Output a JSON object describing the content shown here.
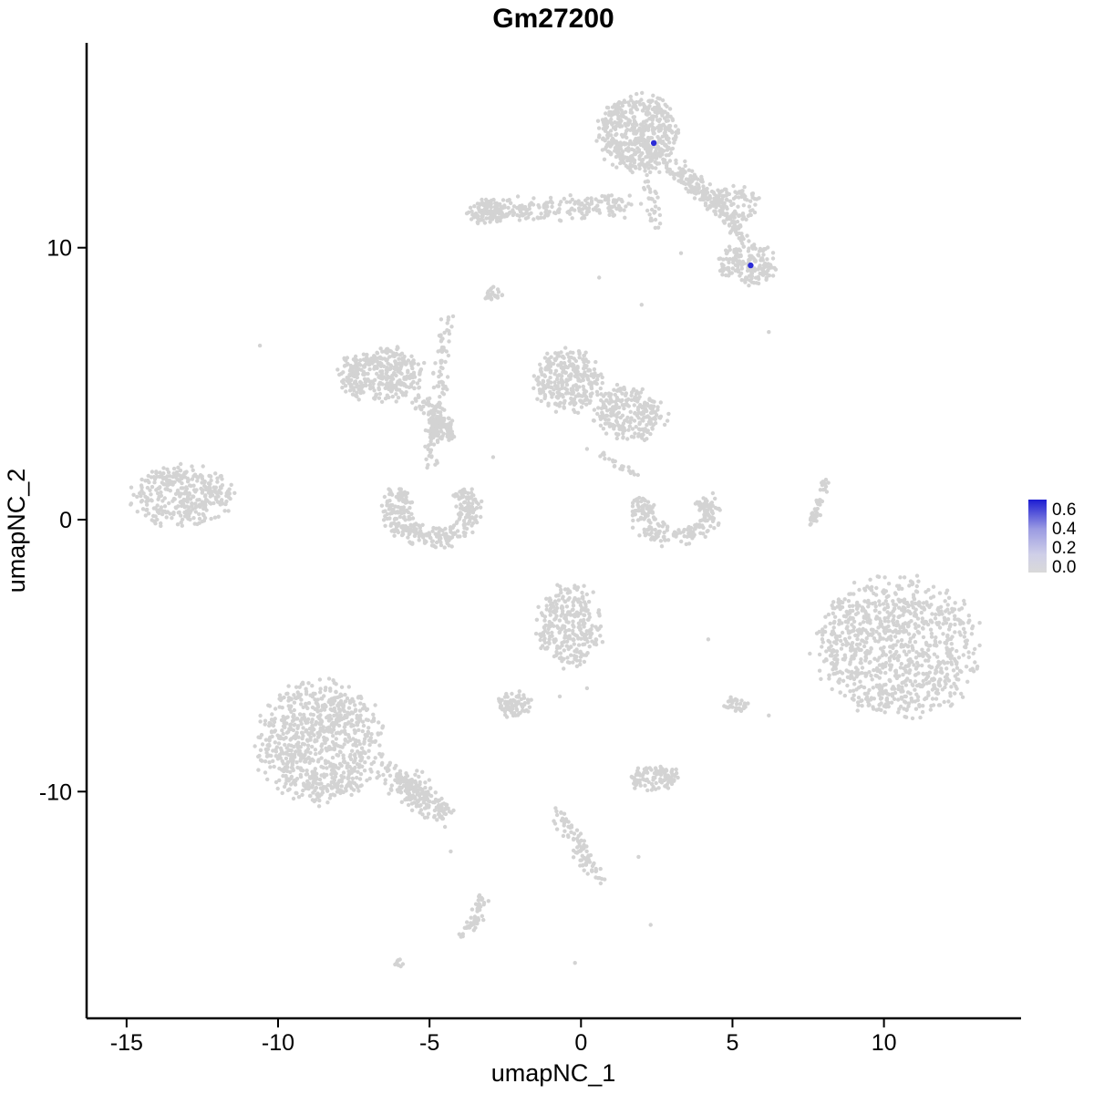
{
  "chart_data": {
    "type": "scatter",
    "title": "Gm27200",
    "xlabel": "umapNC_1",
    "ylabel": "umapNC_2",
    "x_ticks": [
      -15,
      -10,
      -5,
      0,
      5,
      10
    ],
    "y_ticks": [
      -10,
      0,
      10
    ],
    "xlim": [
      -16.3,
      14.6
    ],
    "ylim": [
      -18.4,
      17.6
    ],
    "grid": false,
    "background": "#ffffff",
    "point_color": "#d3d3d3",
    "highlight_color": "#2b2bd6",
    "legend": {
      "position": "right",
      "labels": [
        "0.6",
        "0.4",
        "0.2",
        "0.0"
      ],
      "gradient": [
        "#1c1cd2",
        "#9a9ae2",
        "#cfcfe8",
        "#d9d9d9"
      ]
    },
    "highlight_points": [
      {
        "x": 2.4,
        "y": 13.85,
        "value": 0.6
      },
      {
        "x": 5.6,
        "y": 9.35,
        "value": 0.6
      }
    ],
    "clusters": [
      {
        "type": "blob",
        "cx": 1.9,
        "cy": 14.2,
        "rx": 1.25,
        "ry": 1.4,
        "n": 520
      },
      {
        "type": "line",
        "x1": 2.9,
        "y1": 13.0,
        "x2": 4.4,
        "y2": 11.7,
        "w": 0.45,
        "n": 130
      },
      {
        "type": "line",
        "x1": 2.2,
        "y1": 12.6,
        "x2": 2.5,
        "y2": 10.8,
        "w": 0.25,
        "n": 30
      },
      {
        "type": "blob",
        "cx": 5.0,
        "cy": 11.6,
        "rx": 0.85,
        "ry": 0.65,
        "n": 120
      },
      {
        "type": "line",
        "x1": 4.8,
        "y1": 11.2,
        "x2": 5.4,
        "y2": 10.2,
        "w": 0.3,
        "n": 40
      },
      {
        "type": "blob",
        "cx": 5.5,
        "cy": 9.4,
        "rx": 0.95,
        "ry": 0.75,
        "n": 170
      },
      {
        "type": "line",
        "x1": -3.4,
        "y1": 11.35,
        "x2": 1.6,
        "y2": 11.5,
        "w": 0.5,
        "n": 240
      },
      {
        "type": "blob",
        "cx": -3.1,
        "cy": 11.3,
        "rx": 0.6,
        "ry": 0.45,
        "n": 70
      },
      {
        "type": "blob",
        "cx": -2.9,
        "cy": 8.3,
        "rx": 0.3,
        "ry": 0.25,
        "n": 25
      },
      {
        "type": "line",
        "x1": -4.4,
        "y1": 7.5,
        "x2": -5.0,
        "y2": 2.0,
        "w": 0.3,
        "n": 90
      },
      {
        "type": "blob",
        "cx": -6.6,
        "cy": 5.3,
        "rx": 1.4,
        "ry": 1.0,
        "n": 340
      },
      {
        "type": "line",
        "x1": -5.4,
        "y1": 4.6,
        "x2": -4.6,
        "y2": 3.6,
        "w": 0.35,
        "n": 60
      },
      {
        "type": "blob",
        "cx": -0.4,
        "cy": 5.1,
        "rx": 1.15,
        "ry": 1.1,
        "n": 300
      },
      {
        "type": "blob",
        "cx": 1.6,
        "cy": 3.9,
        "rx": 1.15,
        "ry": 1.0,
        "n": 240
      },
      {
        "type": "blob",
        "cx": -4.6,
        "cy": 3.3,
        "rx": 0.45,
        "ry": 0.45,
        "n": 90
      },
      {
        "type": "arc",
        "cx": -4.9,
        "cy": 0.4,
        "r": 1.25,
        "a1": 140,
        "a2": 400,
        "w": 0.55,
        "n": 330
      },
      {
        "type": "blob",
        "cx": -13.2,
        "cy": 0.9,
        "rx": 1.6,
        "ry": 1.1,
        "n": 330
      },
      {
        "type": "arc",
        "cx": 3.1,
        "cy": 0.3,
        "r": 1.1,
        "a1": 150,
        "a2": 395,
        "w": 0.5,
        "n": 230
      },
      {
        "type": "line",
        "x1": 8.1,
        "y1": 1.5,
        "x2": 7.6,
        "y2": -0.2,
        "w": 0.18,
        "n": 40
      },
      {
        "type": "blob",
        "cx": 10.4,
        "cy": -4.7,
        "rx": 2.55,
        "ry": 2.5,
        "n": 950
      },
      {
        "type": "blob",
        "cx": -0.4,
        "cy": -3.9,
        "rx": 1.05,
        "ry": 1.5,
        "n": 280
      },
      {
        "type": "blob",
        "cx": -2.2,
        "cy": -6.8,
        "rx": 0.55,
        "ry": 0.45,
        "n": 75
      },
      {
        "type": "blob",
        "cx": 5.1,
        "cy": -6.8,
        "rx": 0.4,
        "ry": 0.3,
        "n": 35
      },
      {
        "type": "blob",
        "cx": -8.6,
        "cy": -8.2,
        "rx": 2.0,
        "ry": 2.1,
        "n": 830
      },
      {
        "type": "line",
        "x1": -6.3,
        "y1": -9.3,
        "x2": -4.5,
        "y2": -10.8,
        "w": 0.6,
        "n": 230
      },
      {
        "type": "blob",
        "cx": 2.4,
        "cy": -9.5,
        "rx": 0.85,
        "ry": 0.5,
        "n": 100
      },
      {
        "type": "line",
        "x1": -0.8,
        "y1": -10.8,
        "x2": 0.6,
        "y2": -13.2,
        "w": 0.35,
        "n": 90
      },
      {
        "type": "line",
        "x1": -3.2,
        "y1": -13.9,
        "x2": -3.8,
        "y2": -15.3,
        "w": 0.28,
        "n": 55
      },
      {
        "type": "blob",
        "cx": -6.0,
        "cy": -16.3,
        "rx": 0.2,
        "ry": 0.15,
        "n": 8
      },
      {
        "type": "line",
        "x1": 0.6,
        "y1": 2.4,
        "x2": 1.8,
        "y2": 1.7,
        "w": 0.15,
        "n": 22
      }
    ],
    "singles": [
      [
        -10.6,
        6.4
      ],
      [
        6.2,
        6.9
      ],
      [
        2.0,
        7.9
      ],
      [
        0.6,
        8.9
      ],
      [
        -2.9,
        2.3
      ],
      [
        0.2,
        2.6
      ],
      [
        4.2,
        -4.4
      ],
      [
        6.2,
        -7.2
      ],
      [
        0.2,
        -6.2
      ],
      [
        1.9,
        -12.4
      ],
      [
        2.3,
        -14.9
      ],
      [
        -0.2,
        -16.3
      ],
      [
        -4.3,
        -12.2
      ],
      [
        3.3,
        9.8
      ],
      [
        2.3,
        11.0
      ],
      [
        -0.7,
        -6.5
      ]
    ]
  }
}
